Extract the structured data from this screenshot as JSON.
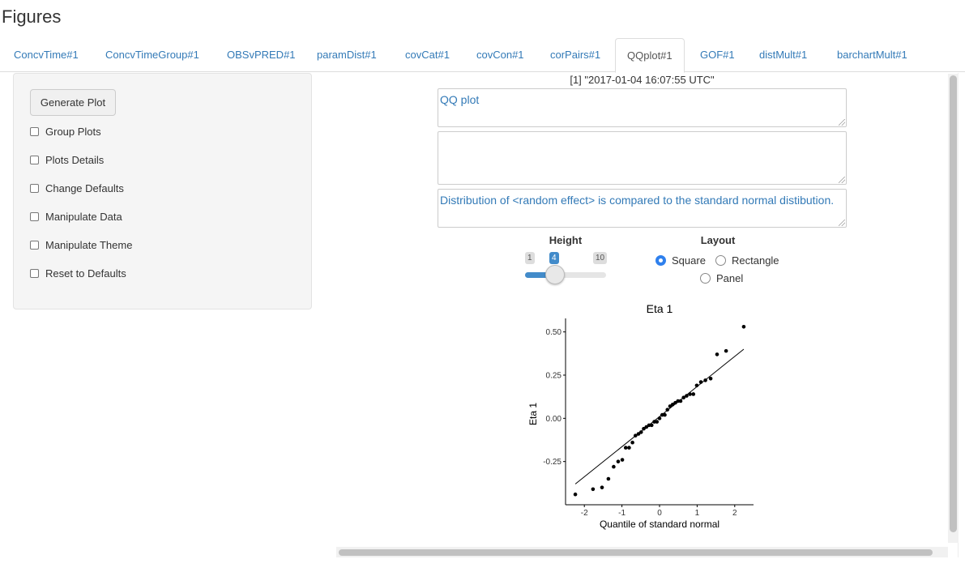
{
  "page": {
    "title": "Figures"
  },
  "tabs": [
    {
      "label": "ConcvTime#1",
      "active": false
    },
    {
      "label": "ConcvTimeGroup#1",
      "active": false
    },
    {
      "label": "OBSvPRED#1",
      "active": false
    },
    {
      "label": "paramDist#1",
      "active": false
    },
    {
      "label": "covCat#1",
      "active": false
    },
    {
      "label": "covCon#1",
      "active": false
    },
    {
      "label": "corPairs#1",
      "active": false
    },
    {
      "label": "QQplot#1",
      "active": true
    },
    {
      "label": "GOF#1",
      "active": false
    },
    {
      "label": "distMult#1",
      "active": false
    },
    {
      "label": "barchartMult#1",
      "active": false
    }
  ],
  "sidebar": {
    "generate_button": "Generate Plot",
    "checkboxes": [
      {
        "label": "Group Plots",
        "checked": false
      },
      {
        "label": "Plots Details",
        "checked": false
      },
      {
        "label": "Change Defaults",
        "checked": false
      },
      {
        "label": "Manipulate Data",
        "checked": false
      },
      {
        "label": "Manipulate Theme",
        "checked": false
      },
      {
        "label": "Reset to Defaults",
        "checked": false
      }
    ]
  },
  "main": {
    "timestamp": "[1] \"2017-01-04 16:07:55 UTC\"",
    "title_text": "QQ plot",
    "subtitle_text": "",
    "caption_text": "Distribution of <random effect> is compared to the standard normal distibution.",
    "height_control": {
      "label": "Height",
      "min": "1",
      "max": "10",
      "value": "4"
    },
    "layout_control": {
      "label": "Layout",
      "options": [
        {
          "label": "Square",
          "checked": true
        },
        {
          "label": "Rectangle",
          "checked": false
        },
        {
          "label": "Panel",
          "checked": false
        }
      ]
    }
  },
  "colors": {
    "accent": "#337ab7",
    "slider": "#428bca",
    "radio": "#2f80ed"
  },
  "chart_data": {
    "type": "scatter",
    "title": "Eta 1",
    "xlabel": "Quantile of standard normal",
    "ylabel": "Eta 1",
    "xlim": [
      -2.5,
      2.5
    ],
    "ylim": [
      -0.5,
      0.55
    ],
    "xticks": [
      -2,
      -1,
      0,
      1,
      2
    ],
    "xtick_labels": [
      "-2",
      "-1",
      "0",
      "1",
      "2"
    ],
    "yticks": [
      -0.25,
      0.0,
      0.25,
      0.5
    ],
    "ytick_labels": [
      "-0.25",
      "0.00",
      "0.25",
      "0.50"
    ],
    "grid": false,
    "points": [
      [
        -2.24,
        -0.44
      ],
      [
        -1.77,
        -0.41
      ],
      [
        -1.53,
        -0.4
      ],
      [
        -1.36,
        -0.35
      ],
      [
        -1.22,
        -0.28
      ],
      [
        -1.1,
        -0.25
      ],
      [
        -0.99,
        -0.24
      ],
      [
        -0.9,
        -0.17
      ],
      [
        -0.81,
        -0.17
      ],
      [
        -0.72,
        -0.14
      ],
      [
        -0.64,
        -0.1
      ],
      [
        -0.56,
        -0.09
      ],
      [
        -0.49,
        -0.08
      ],
      [
        -0.42,
        -0.06
      ],
      [
        -0.35,
        -0.05
      ],
      [
        -0.28,
        -0.04
      ],
      [
        -0.21,
        -0.04
      ],
      [
        -0.14,
        -0.02
      ],
      [
        -0.07,
        -0.02
      ],
      [
        0.0,
        0.0
      ],
      [
        0.07,
        0.02
      ],
      [
        0.14,
        0.02
      ],
      [
        0.21,
        0.05
      ],
      [
        0.28,
        0.07
      ],
      [
        0.35,
        0.08
      ],
      [
        0.42,
        0.09
      ],
      [
        0.49,
        0.1
      ],
      [
        0.56,
        0.1
      ],
      [
        0.64,
        0.12
      ],
      [
        0.72,
        0.13
      ],
      [
        0.81,
        0.14
      ],
      [
        0.9,
        0.14
      ],
      [
        0.99,
        0.19
      ],
      [
        1.1,
        0.21
      ],
      [
        1.22,
        0.22
      ],
      [
        1.36,
        0.23
      ],
      [
        1.53,
        0.37
      ],
      [
        1.77,
        0.39
      ],
      [
        2.24,
        0.53
      ]
    ],
    "reference_line": {
      "x": [
        -2.24,
        2.24
      ],
      "y": [
        -0.38,
        0.4
      ]
    }
  }
}
